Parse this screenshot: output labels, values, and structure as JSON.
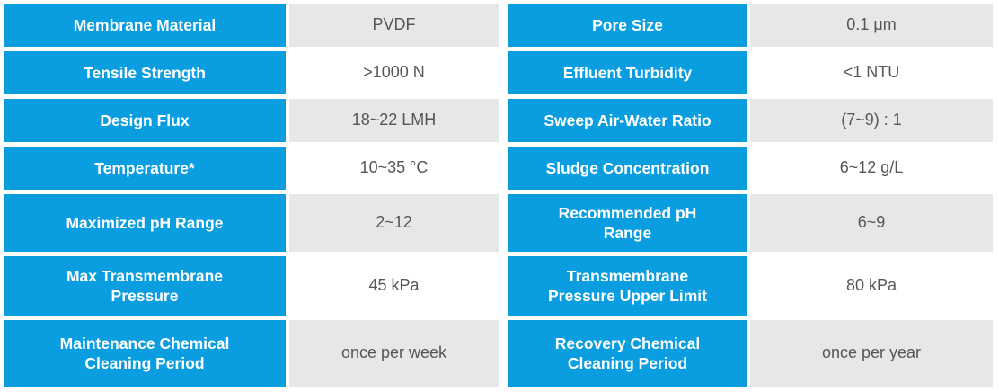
{
  "colors": {
    "label_bg": "#0a9ee0",
    "label_text": "#ffffff",
    "value_text": "#55565a",
    "value_shade_bg": "#e7e7e7",
    "page_bg": "#ffffff"
  },
  "table": {
    "description": "Membrane product specification table",
    "rows": [
      {
        "left": {
          "label": "Membrane Material",
          "value": "PVDF"
        },
        "right": {
          "label": "Pore Size",
          "value": "0.1 μm"
        }
      },
      {
        "left": {
          "label": "Tensile Strength",
          "value": ">1000 N"
        },
        "right": {
          "label": "Effluent Turbidity",
          "value": "<1 NTU"
        }
      },
      {
        "left": {
          "label": "Design Flux",
          "value": "18~22 LMH"
        },
        "right": {
          "label": "Sweep Air-Water Ratio",
          "value": "(7~9) : 1"
        }
      },
      {
        "left": {
          "label": "Temperature*",
          "value": "10~35 °C"
        },
        "right": {
          "label": "Sludge Concentration",
          "value": "6~12 g/L"
        }
      },
      {
        "left": {
          "label": "Maximized pH Range",
          "value": "2~12"
        },
        "right": {
          "label": "Recommended pH\nRange",
          "value": "6~9"
        }
      },
      {
        "left": {
          "label": "Max Transmembrane\nPressure",
          "value": "45 kPa"
        },
        "right": {
          "label": "Transmembrane\nPressure Upper Limit",
          "value": "80 kPa"
        }
      },
      {
        "left": {
          "label": "Maintenance Chemical\nCleaning Period",
          "value": "once per week"
        },
        "right": {
          "label": "Recovery Chemical\nCleaning Period",
          "value": "once per year"
        }
      }
    ]
  }
}
